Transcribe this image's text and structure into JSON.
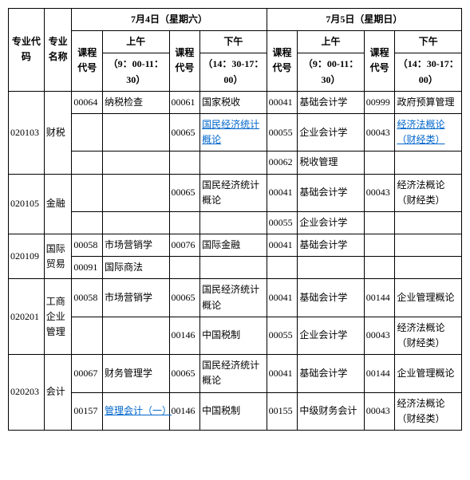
{
  "header": {
    "day1": "7月4日（星期六）",
    "day2": "7月5日（星期日）",
    "major_code": "专业代码",
    "major_name": "专业名称",
    "course_code": "课程代号",
    "am": "上午",
    "pm": "下午",
    "am_time": "（9：00-11：30）",
    "pm_time": "（14：30-17：00）"
  },
  "r": {
    "r1": {
      "mcode": "020103",
      "mname": "财税",
      "c1": "00064",
      "n1": "纳税检查",
      "c2": "00061",
      "n2": "国家税收",
      "c3": "00041",
      "n3": "基础会计学",
      "c4": "00999",
      "n4": "政府预算管理"
    },
    "r2": {
      "c2": "00065",
      "n2": "国民经济统计概论",
      "c3": "00055",
      "n3": "企业会计学",
      "c4": "00043",
      "n4": "经济法概论（财经类）"
    },
    "r3": {
      "c3": "00062",
      "n3": "税收管理"
    },
    "r4": {
      "mcode": "020105",
      "mname": "金融",
      "c2": "00065",
      "n2": "国民经济统计概论",
      "c3": "00041",
      "n3": "基础会计学",
      "c4": "00043",
      "n4": "经济法概论（财经类）"
    },
    "r5": {
      "c3": "00055",
      "n3": "企业会计学"
    },
    "r6": {
      "mcode": "020109",
      "mname": "国际贸易",
      "c1": "00058",
      "n1": "市场营销学",
      "c2": "00076",
      "n2": "国际金融",
      "c3": "00041",
      "n3": "基础会计学"
    },
    "r7": {
      "c1": "00091",
      "n1": "国际商法"
    },
    "r8": {
      "mcode": "020201",
      "mname": "工商企业管理",
      "c1": "00058",
      "n1": "市场营销学",
      "c2": "00065",
      "n2": "国民经济统计概论",
      "c3": "00041",
      "n3": "基础会计学",
      "c4": "00144",
      "n4": "企业管理概论"
    },
    "r9": {
      "c2": "00146",
      "n2": "中国税制",
      "c3": "00055",
      "n3": "企业会计学",
      "c4": "00043",
      "n4": "经济法概论（财经类）"
    },
    "r10": {
      "mcode": "020203",
      "mname": "会计",
      "c1": "00067",
      "n1": "财务管理学",
      "c2": "00065",
      "n2": "国民经济统计概论",
      "c3": "00041",
      "n3": "基础会计学",
      "c4": "00144",
      "n4": "企业管理概论"
    },
    "r11": {
      "c1": "00157",
      "n1": "管理会计（一）",
      "c2": "00146",
      "n2": "中国税制",
      "c3": "00155",
      "n3": "中级财务会计",
      "c4": "00043",
      "n4": "经济法概论（财经类）"
    }
  }
}
